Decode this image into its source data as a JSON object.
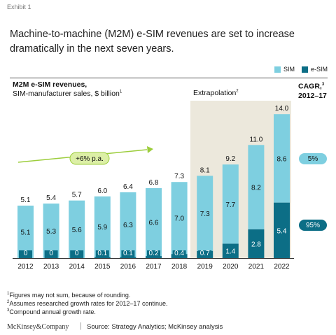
{
  "exhibit": "Exhibit 1",
  "headline": "Machine-to-machine (M2M) e-SIM revenues are set to increase dramatically in the next seven years.",
  "legend": {
    "sim": "SIM",
    "esim": "e-SIM"
  },
  "subtitle_main": "M2M e-SIM revenues,",
  "subtitle_sub": "SIM-manufacturer sales, $ billion",
  "subtitle_sup": "1",
  "extrapolation": "Extrapolation",
  "extrapolation_sup": "2",
  "cagr_title_a": "CAGR,",
  "cagr_title_sup": "3",
  "cagr_title_b": "2012–17",
  "growth_annotation": "+6% p.a.",
  "colors": {
    "sim": "#7ecfe0",
    "esim": "#0c6e86",
    "extrap_bg": "#ece8dc",
    "arrow_green": "#9ccd3c",
    "arrow_fill": "#dcefa6"
  },
  "chart_data": {
    "type": "bar",
    "stacked": true,
    "categories": [
      "2012",
      "2013",
      "2014",
      "2015",
      "2016",
      "2017",
      "2018",
      "2019",
      "2020",
      "2021",
      "2022"
    ],
    "series": [
      {
        "name": "e-SIM",
        "values": [
          0,
          0,
          0,
          0.1,
          0.1,
          0.2,
          0.4,
          0.7,
          1.4,
          2.8,
          5.4
        ],
        "labels": [
          "0",
          "0",
          "0",
          "0.1",
          "0.1",
          "0.2",
          "0.4",
          "0.7",
          "1.4",
          "2.8",
          "5.4"
        ]
      },
      {
        "name": "SIM",
        "values": [
          5.1,
          5.3,
          5.6,
          5.9,
          6.3,
          6.6,
          7.0,
          7.3,
          7.7,
          8.2,
          8.6
        ],
        "labels": [
          "5.1",
          "5.3",
          "5.6",
          "5.9",
          "6.3",
          "6.6",
          "7.0",
          "7.3",
          "7.7",
          "8.2",
          "8.6"
        ]
      }
    ],
    "totals": [
      "5.1",
      "5.4",
      "5.7",
      "6.0",
      "6.4",
      "6.8",
      "7.3",
      "8.1",
      "9.2",
      "11.0",
      "14.0"
    ],
    "cagr": {
      "sim": "5%",
      "esim": "95%"
    }
  },
  "footnotes": [
    "Figures may not sum, because of rounding.",
    "Assumes researched growth rates for 2012–17 continue.",
    "Compound annual growth rate."
  ],
  "footnote_marks": [
    "1",
    "2",
    "3"
  ],
  "brand": "McKinsey&Company",
  "source": "Source: Strategy Analytics; McKinsey analysis"
}
